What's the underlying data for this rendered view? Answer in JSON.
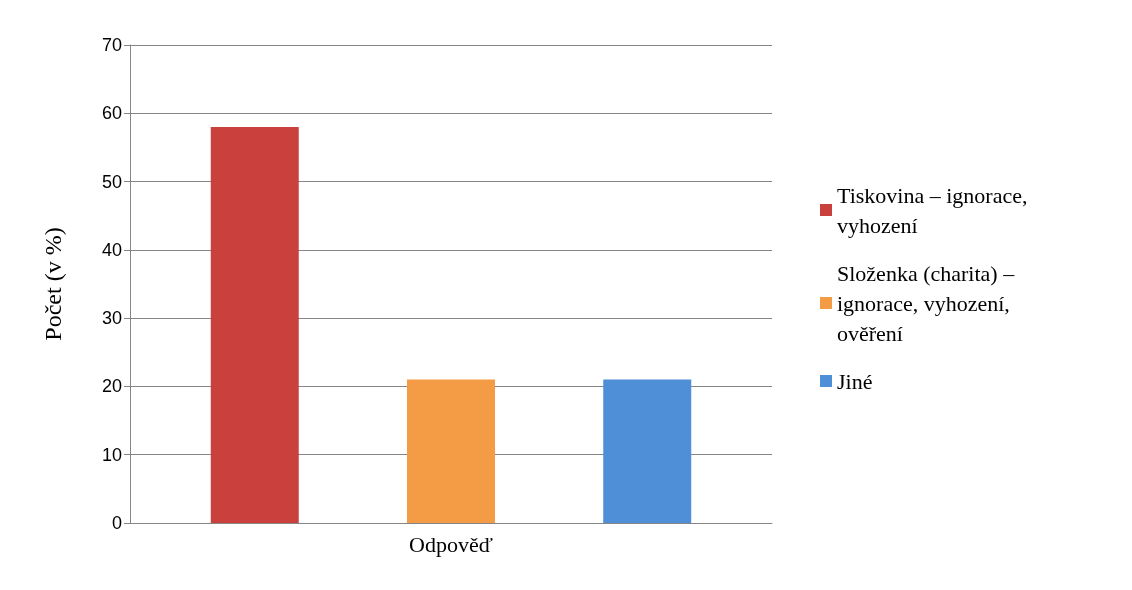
{
  "chart_data": {
    "type": "bar",
    "ylabel": "Počet (v %)",
    "categories": [
      "Odpověď"
    ],
    "series": [
      {
        "name": "Tiskovina – ignorace, vyhození",
        "color": "#c9403c",
        "values": [
          58
        ]
      },
      {
        "name": "Složenka (charita) – ignorace, vyhození, ověření",
        "color": "#f39c45",
        "values": [
          21
        ]
      },
      {
        "name": "Jiné",
        "color": "#4f8fd8",
        "values": [
          21
        ]
      }
    ],
    "ylim": [
      0,
      70
    ],
    "yticks": [
      0,
      10,
      20,
      30,
      40,
      50,
      60,
      70
    ],
    "grid": "y",
    "legend": "right"
  }
}
